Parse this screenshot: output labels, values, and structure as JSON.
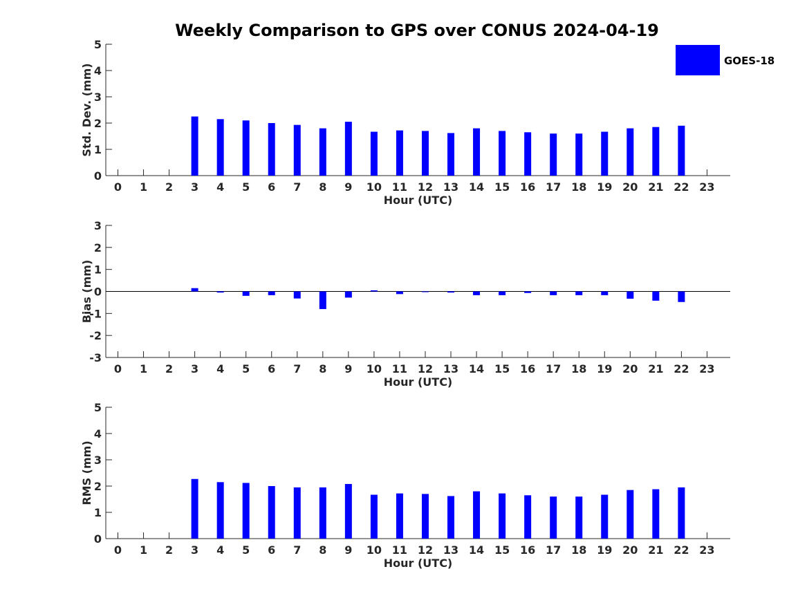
{
  "title": "Weekly Comparison to GPS over CONUS 2024-04-19",
  "legend": {
    "label": "GOES-18",
    "color": "#0000ff",
    "placement": "top-right"
  },
  "chart_data": [
    {
      "type": "bar",
      "name": "stddev",
      "ylabel": "Std. Dev. (mm)",
      "xlabel": "Hour (UTC)",
      "categories": [
        0,
        1,
        2,
        3,
        4,
        5,
        6,
        7,
        8,
        9,
        10,
        11,
        12,
        13,
        14,
        15,
        16,
        17,
        18,
        19,
        20,
        21,
        22,
        23
      ],
      "ylim": [
        0,
        5
      ],
      "yticks": [
        0,
        1,
        2,
        3,
        4,
        5
      ],
      "series": [
        {
          "name": "GOES-18",
          "color": "#0000ff",
          "values": [
            null,
            null,
            null,
            2.25,
            2.15,
            2.1,
            2.0,
            1.93,
            1.8,
            2.05,
            1.67,
            1.72,
            1.7,
            1.62,
            1.8,
            1.7,
            1.65,
            1.6,
            1.6,
            1.67,
            1.8,
            1.85,
            1.9,
            null
          ]
        }
      ]
    },
    {
      "type": "bar",
      "name": "bias",
      "ylabel": "Bias (mm)",
      "xlabel": "Hour (UTC)",
      "categories": [
        0,
        1,
        2,
        3,
        4,
        5,
        6,
        7,
        8,
        9,
        10,
        11,
        12,
        13,
        14,
        15,
        16,
        17,
        18,
        19,
        20,
        21,
        22,
        23
      ],
      "ylim": [
        -3,
        3
      ],
      "yticks": [
        -3,
        -2,
        -1,
        0,
        1,
        2,
        3
      ],
      "zero_line": true,
      "series": [
        {
          "name": "GOES-18",
          "color": "#0000ff",
          "values": [
            null,
            null,
            null,
            0.15,
            -0.05,
            -0.2,
            -0.17,
            -0.32,
            -0.8,
            -0.28,
            0.05,
            -0.12,
            -0.02,
            -0.05,
            -0.17,
            -0.17,
            -0.07,
            -0.17,
            -0.17,
            -0.17,
            -0.33,
            -0.42,
            -0.48,
            null
          ]
        }
      ]
    },
    {
      "type": "bar",
      "name": "rms",
      "ylabel": "RMS (mm)",
      "xlabel": "Hour (UTC)",
      "categories": [
        0,
        1,
        2,
        3,
        4,
        5,
        6,
        7,
        8,
        9,
        10,
        11,
        12,
        13,
        14,
        15,
        16,
        17,
        18,
        19,
        20,
        21,
        22,
        23
      ],
      "ylim": [
        0,
        5
      ],
      "yticks": [
        0,
        1,
        2,
        3,
        4,
        5
      ],
      "series": [
        {
          "name": "GOES-18",
          "color": "#0000ff",
          "values": [
            null,
            null,
            null,
            2.27,
            2.15,
            2.12,
            2.0,
            1.95,
            1.95,
            2.08,
            1.67,
            1.72,
            1.7,
            1.62,
            1.8,
            1.72,
            1.65,
            1.6,
            1.6,
            1.67,
            1.85,
            1.88,
            1.95,
            null
          ]
        }
      ]
    }
  ]
}
